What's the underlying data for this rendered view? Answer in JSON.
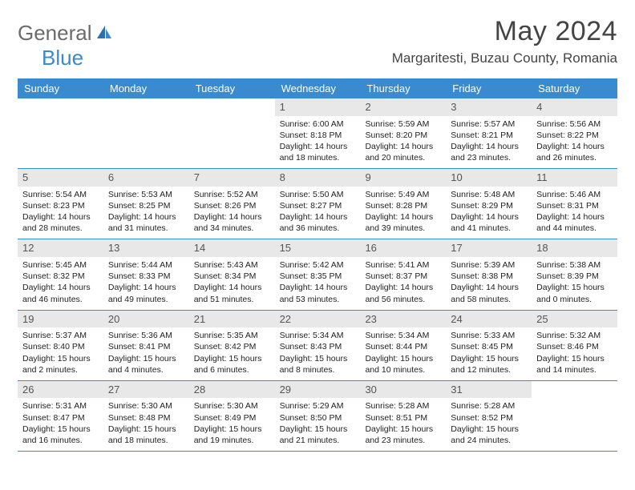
{
  "logo": {
    "text1": "General",
    "text2": "Blue"
  },
  "title": "May 2024",
  "location": "Margaritesti, Buzau County, Romania",
  "colors": {
    "header_bg": "#3a8ad0",
    "header_text": "#ffffff",
    "daynum_bg": "#e8e8e8",
    "rule": "#3a8ad0",
    "body_text": "#222222"
  },
  "weekdays": [
    "Sunday",
    "Monday",
    "Tuesday",
    "Wednesday",
    "Thursday",
    "Friday",
    "Saturday"
  ],
  "weeks": [
    [
      {
        "n": "",
        "sr": "",
        "ss": "",
        "dl1": "",
        "dl2": ""
      },
      {
        "n": "",
        "sr": "",
        "ss": "",
        "dl1": "",
        "dl2": ""
      },
      {
        "n": "",
        "sr": "",
        "ss": "",
        "dl1": "",
        "dl2": ""
      },
      {
        "n": "1",
        "sr": "Sunrise: 6:00 AM",
        "ss": "Sunset: 8:18 PM",
        "dl1": "Daylight: 14 hours",
        "dl2": "and 18 minutes."
      },
      {
        "n": "2",
        "sr": "Sunrise: 5:59 AM",
        "ss": "Sunset: 8:20 PM",
        "dl1": "Daylight: 14 hours",
        "dl2": "and 20 minutes."
      },
      {
        "n": "3",
        "sr": "Sunrise: 5:57 AM",
        "ss": "Sunset: 8:21 PM",
        "dl1": "Daylight: 14 hours",
        "dl2": "and 23 minutes."
      },
      {
        "n": "4",
        "sr": "Sunrise: 5:56 AM",
        "ss": "Sunset: 8:22 PM",
        "dl1": "Daylight: 14 hours",
        "dl2": "and 26 minutes."
      }
    ],
    [
      {
        "n": "5",
        "sr": "Sunrise: 5:54 AM",
        "ss": "Sunset: 8:23 PM",
        "dl1": "Daylight: 14 hours",
        "dl2": "and 28 minutes."
      },
      {
        "n": "6",
        "sr": "Sunrise: 5:53 AM",
        "ss": "Sunset: 8:25 PM",
        "dl1": "Daylight: 14 hours",
        "dl2": "and 31 minutes."
      },
      {
        "n": "7",
        "sr": "Sunrise: 5:52 AM",
        "ss": "Sunset: 8:26 PM",
        "dl1": "Daylight: 14 hours",
        "dl2": "and 34 minutes."
      },
      {
        "n": "8",
        "sr": "Sunrise: 5:50 AM",
        "ss": "Sunset: 8:27 PM",
        "dl1": "Daylight: 14 hours",
        "dl2": "and 36 minutes."
      },
      {
        "n": "9",
        "sr": "Sunrise: 5:49 AM",
        "ss": "Sunset: 8:28 PM",
        "dl1": "Daylight: 14 hours",
        "dl2": "and 39 minutes."
      },
      {
        "n": "10",
        "sr": "Sunrise: 5:48 AM",
        "ss": "Sunset: 8:29 PM",
        "dl1": "Daylight: 14 hours",
        "dl2": "and 41 minutes."
      },
      {
        "n": "11",
        "sr": "Sunrise: 5:46 AM",
        "ss": "Sunset: 8:31 PM",
        "dl1": "Daylight: 14 hours",
        "dl2": "and 44 minutes."
      }
    ],
    [
      {
        "n": "12",
        "sr": "Sunrise: 5:45 AM",
        "ss": "Sunset: 8:32 PM",
        "dl1": "Daylight: 14 hours",
        "dl2": "and 46 minutes."
      },
      {
        "n": "13",
        "sr": "Sunrise: 5:44 AM",
        "ss": "Sunset: 8:33 PM",
        "dl1": "Daylight: 14 hours",
        "dl2": "and 49 minutes."
      },
      {
        "n": "14",
        "sr": "Sunrise: 5:43 AM",
        "ss": "Sunset: 8:34 PM",
        "dl1": "Daylight: 14 hours",
        "dl2": "and 51 minutes."
      },
      {
        "n": "15",
        "sr": "Sunrise: 5:42 AM",
        "ss": "Sunset: 8:35 PM",
        "dl1": "Daylight: 14 hours",
        "dl2": "and 53 minutes."
      },
      {
        "n": "16",
        "sr": "Sunrise: 5:41 AM",
        "ss": "Sunset: 8:37 PM",
        "dl1": "Daylight: 14 hours",
        "dl2": "and 56 minutes."
      },
      {
        "n": "17",
        "sr": "Sunrise: 5:39 AM",
        "ss": "Sunset: 8:38 PM",
        "dl1": "Daylight: 14 hours",
        "dl2": "and 58 minutes."
      },
      {
        "n": "18",
        "sr": "Sunrise: 5:38 AM",
        "ss": "Sunset: 8:39 PM",
        "dl1": "Daylight: 15 hours",
        "dl2": "and 0 minutes."
      }
    ],
    [
      {
        "n": "19",
        "sr": "Sunrise: 5:37 AM",
        "ss": "Sunset: 8:40 PM",
        "dl1": "Daylight: 15 hours",
        "dl2": "and 2 minutes."
      },
      {
        "n": "20",
        "sr": "Sunrise: 5:36 AM",
        "ss": "Sunset: 8:41 PM",
        "dl1": "Daylight: 15 hours",
        "dl2": "and 4 minutes."
      },
      {
        "n": "21",
        "sr": "Sunrise: 5:35 AM",
        "ss": "Sunset: 8:42 PM",
        "dl1": "Daylight: 15 hours",
        "dl2": "and 6 minutes."
      },
      {
        "n": "22",
        "sr": "Sunrise: 5:34 AM",
        "ss": "Sunset: 8:43 PM",
        "dl1": "Daylight: 15 hours",
        "dl2": "and 8 minutes."
      },
      {
        "n": "23",
        "sr": "Sunrise: 5:34 AM",
        "ss": "Sunset: 8:44 PM",
        "dl1": "Daylight: 15 hours",
        "dl2": "and 10 minutes."
      },
      {
        "n": "24",
        "sr": "Sunrise: 5:33 AM",
        "ss": "Sunset: 8:45 PM",
        "dl1": "Daylight: 15 hours",
        "dl2": "and 12 minutes."
      },
      {
        "n": "25",
        "sr": "Sunrise: 5:32 AM",
        "ss": "Sunset: 8:46 PM",
        "dl1": "Daylight: 15 hours",
        "dl2": "and 14 minutes."
      }
    ],
    [
      {
        "n": "26",
        "sr": "Sunrise: 5:31 AM",
        "ss": "Sunset: 8:47 PM",
        "dl1": "Daylight: 15 hours",
        "dl2": "and 16 minutes."
      },
      {
        "n": "27",
        "sr": "Sunrise: 5:30 AM",
        "ss": "Sunset: 8:48 PM",
        "dl1": "Daylight: 15 hours",
        "dl2": "and 18 minutes."
      },
      {
        "n": "28",
        "sr": "Sunrise: 5:30 AM",
        "ss": "Sunset: 8:49 PM",
        "dl1": "Daylight: 15 hours",
        "dl2": "and 19 minutes."
      },
      {
        "n": "29",
        "sr": "Sunrise: 5:29 AM",
        "ss": "Sunset: 8:50 PM",
        "dl1": "Daylight: 15 hours",
        "dl2": "and 21 minutes."
      },
      {
        "n": "30",
        "sr": "Sunrise: 5:28 AM",
        "ss": "Sunset: 8:51 PM",
        "dl1": "Daylight: 15 hours",
        "dl2": "and 23 minutes."
      },
      {
        "n": "31",
        "sr": "Sunrise: 5:28 AM",
        "ss": "Sunset: 8:52 PM",
        "dl1": "Daylight: 15 hours",
        "dl2": "and 24 minutes."
      },
      {
        "n": "",
        "sr": "",
        "ss": "",
        "dl1": "",
        "dl2": ""
      }
    ]
  ]
}
